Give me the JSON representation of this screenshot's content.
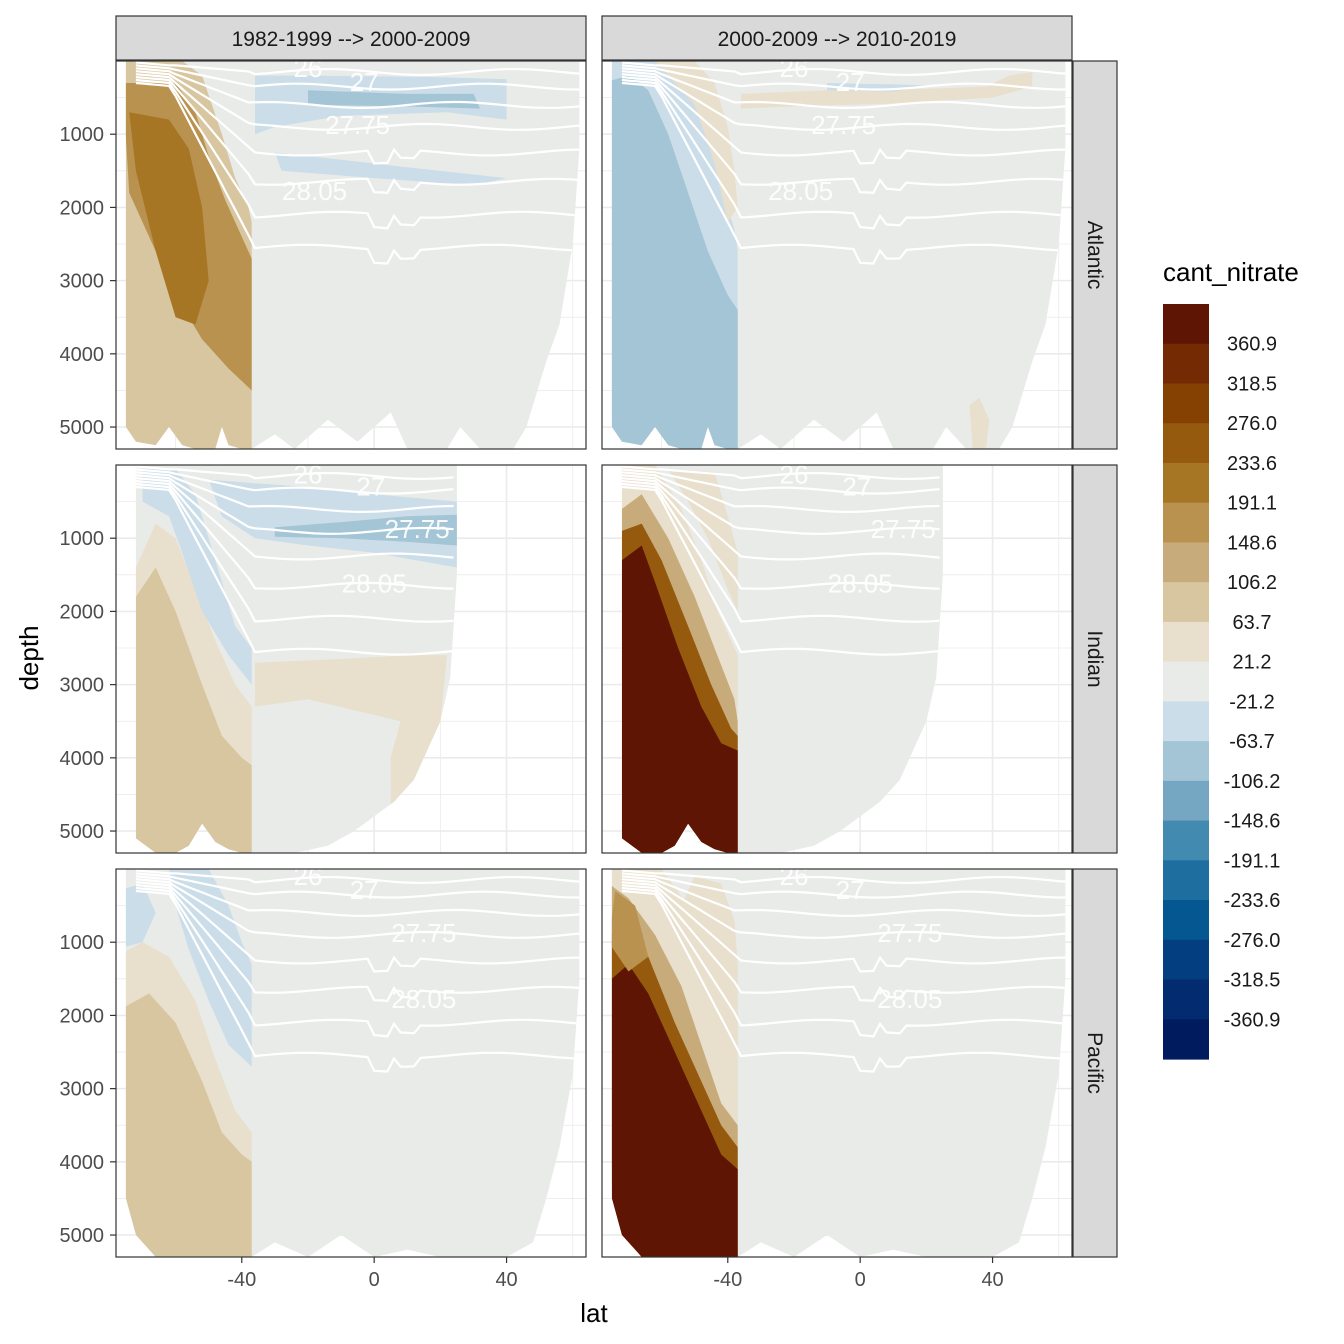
{
  "chart_data": {
    "type": "heatmap",
    "subtype": "faceted filled contour sections",
    "xlabel": "lat",
    "ylabel": "depth",
    "xlim": [
      -78,
      64
    ],
    "ylim": [
      5300,
      0
    ],
    "y_reversed": true,
    "x_ticks": [
      -40,
      0,
      40
    ],
    "y_ticks": [
      1000,
      2000,
      3000,
      4000,
      5000
    ],
    "grid": true,
    "legend_position": "right",
    "columns": [
      "1982-1999 --> 2000-2009",
      "2000-2009 --> 2010-2019"
    ],
    "rows": [
      "Atlantic",
      "Indian",
      "Pacific"
    ],
    "isopycnal_labels": [
      "26",
      "27",
      "27.75",
      "28.05"
    ],
    "legend": {
      "title": "cant_nitrate",
      "labels": [
        "360.9",
        "318.5",
        "276.0",
        "233.6",
        "191.1",
        "148.6",
        "106.2",
        "63.7",
        "21.2",
        "-21.2",
        "-63.7",
        "-106.2",
        "-148.6",
        "-191.1",
        "-233.6",
        "-276.0",
        "-318.5",
        "-360.9"
      ],
      "colors": [
        "#5e1503",
        "#742a03",
        "#854102",
        "#955a0d",
        "#a67624",
        "#b9924f",
        "#c8ab7a",
        "#d8c6a0",
        "#e8dfcc",
        "#e9ebe9",
        "#cbdde8",
        "#a3c5d6",
        "#75a7c3",
        "#438ab1",
        "#1e6ea0",
        "#045790",
        "#033f80",
        "#022c6f",
        "#001c5f"
      ]
    },
    "panels": [
      {
        "row": "Atlantic",
        "column": "1982-1999 --> 2000-2009",
        "summary": "southern (-75 to -37) column positive, about 148.6 to 233.6; north negative bands -21.2 to -63.7 near 700 m and 1500 m"
      },
      {
        "row": "Atlantic",
        "column": "2000-2009 --> 2010-2019",
        "summary": "southern column negative, about -63.7 to -106.2; thin positive band 21.2 to 63.7 near 600 m"
      },
      {
        "row": "Indian",
        "column": "1982-1999 --> 2000-2009",
        "summary": "southern column positive 63.7 to 106.2; negative band -63.7 to -106.2 near 1000 m"
      },
      {
        "row": "Indian",
        "column": "2000-2009 --> 2010-2019",
        "summary": "strong positive core above 360.9 between -70 and -37, 1500 to 5300 m"
      },
      {
        "row": "Pacific",
        "column": "1982-1999 --> 2000-2009",
        "summary": "southern column positive 21.2 to 106.2; upper negative wedge -21.2 to -63.7"
      },
      {
        "row": "Pacific",
        "column": "2000-2009 --> 2010-2019",
        "summary": "strong positive core above 360.9 between -75 and -37, 1500 to 5300 m"
      }
    ]
  }
}
